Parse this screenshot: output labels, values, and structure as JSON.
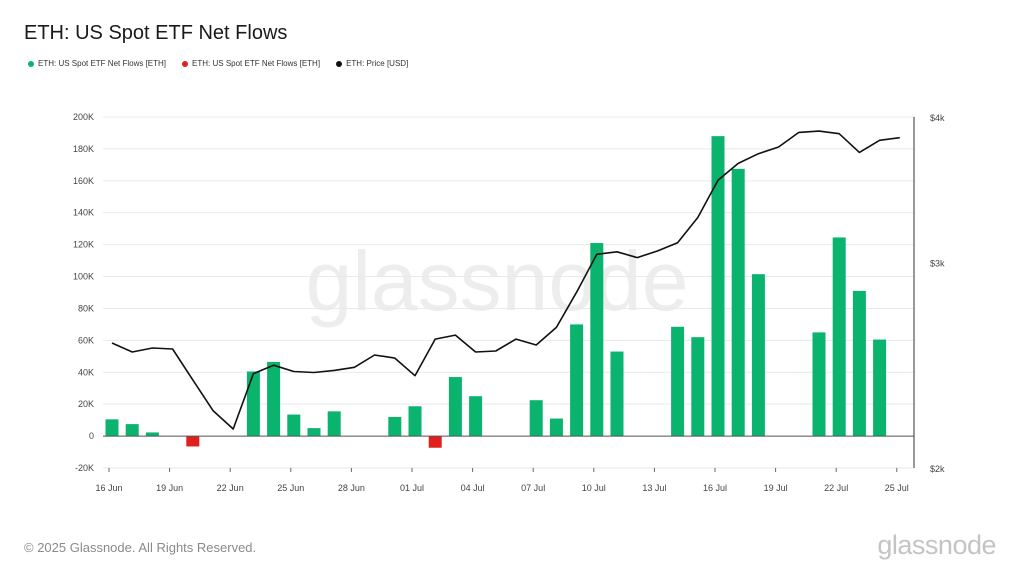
{
  "title": "ETH: US Spot ETF Net Flows",
  "footer": "© 2025 Glassnode. All Rights Reserved.",
  "watermark": "glassnode",
  "colors": {
    "positive": "#0ab46e",
    "negative": "#e0201f",
    "price": "#111111"
  },
  "chart_data": {
    "type": "bar",
    "legend": [
      {
        "label": "ETH: US Spot ETF Net Flows [ETH]",
        "color": "#0ab46e"
      },
      {
        "label": "ETH: US Spot ETF Net Flows [ETH]",
        "color": "#e0201f"
      },
      {
        "label": "ETH: Price [USD]",
        "color": "#111111"
      }
    ],
    "legend_position": "top-left",
    "grid": true,
    "x_ticks": [
      "16 Jun",
      "19 Jun",
      "22 Jun",
      "25 Jun",
      "28 Jun",
      "01 Jul",
      "04 Jul",
      "07 Jul",
      "10 Jul",
      "13 Jul",
      "16 Jul",
      "19 Jul",
      "22 Jul",
      "25 Jul"
    ],
    "y_ticks": [
      "-20K",
      "0",
      "20K",
      "40K",
      "60K",
      "80K",
      "100K",
      "120K",
      "140K",
      "160K",
      "180K",
      "200K"
    ],
    "y2_ticks": [
      "$2k",
      "$3k",
      "$4k"
    ],
    "ylim": [
      -20000,
      200000
    ],
    "y2lim": [
      2000,
      4000
    ],
    "y2_scale": "log",
    "dates": [
      "16 Jun",
      "17 Jun",
      "18 Jun",
      "19 Jun",
      "20 Jun",
      "21 Jun",
      "22 Jun",
      "23 Jun",
      "24 Jun",
      "25 Jun",
      "26 Jun",
      "27 Jun",
      "28 Jun",
      "29 Jun",
      "30 Jun",
      "01 Jul",
      "02 Jul",
      "03 Jul",
      "04 Jul",
      "05 Jul",
      "06 Jul",
      "07 Jul",
      "08 Jul",
      "09 Jul",
      "10 Jul",
      "11 Jul",
      "12 Jul",
      "13 Jul",
      "14 Jul",
      "15 Jul",
      "16 Jul",
      "17 Jul",
      "18 Jul",
      "19 Jul",
      "20 Jul",
      "21 Jul",
      "22 Jul",
      "23 Jul",
      "24 Jul",
      "25 Jul"
    ],
    "series": [
      {
        "kind": "bar",
        "values": [
          10500,
          7500,
          2300,
          0,
          -6500,
          0,
          0,
          40500,
          46500,
          13500,
          5000,
          15500,
          0,
          0,
          12000,
          18700,
          -7300,
          37000,
          25000,
          0,
          0,
          22500,
          11000,
          70000,
          121000,
          53000,
          0,
          0,
          68500,
          62000,
          188000,
          167500,
          101500,
          0,
          0,
          65000,
          124500,
          91000,
          60500,
          0
        ]
      },
      {
        "kind": "line",
        "values": [
          2560,
          2515,
          2535,
          2530,
          2380,
          2240,
          2160,
          2410,
          2450,
          2420,
          2415,
          2425,
          2440,
          2500,
          2485,
          2400,
          2580,
          2600,
          2515,
          2520,
          2580,
          2550,
          2640,
          2830,
          3050,
          3065,
          3030,
          3070,
          3120,
          3280,
          3530,
          3650,
          3720,
          3770,
          3880,
          3890,
          3870,
          3730,
          3820,
          3840
        ]
      }
    ]
  }
}
